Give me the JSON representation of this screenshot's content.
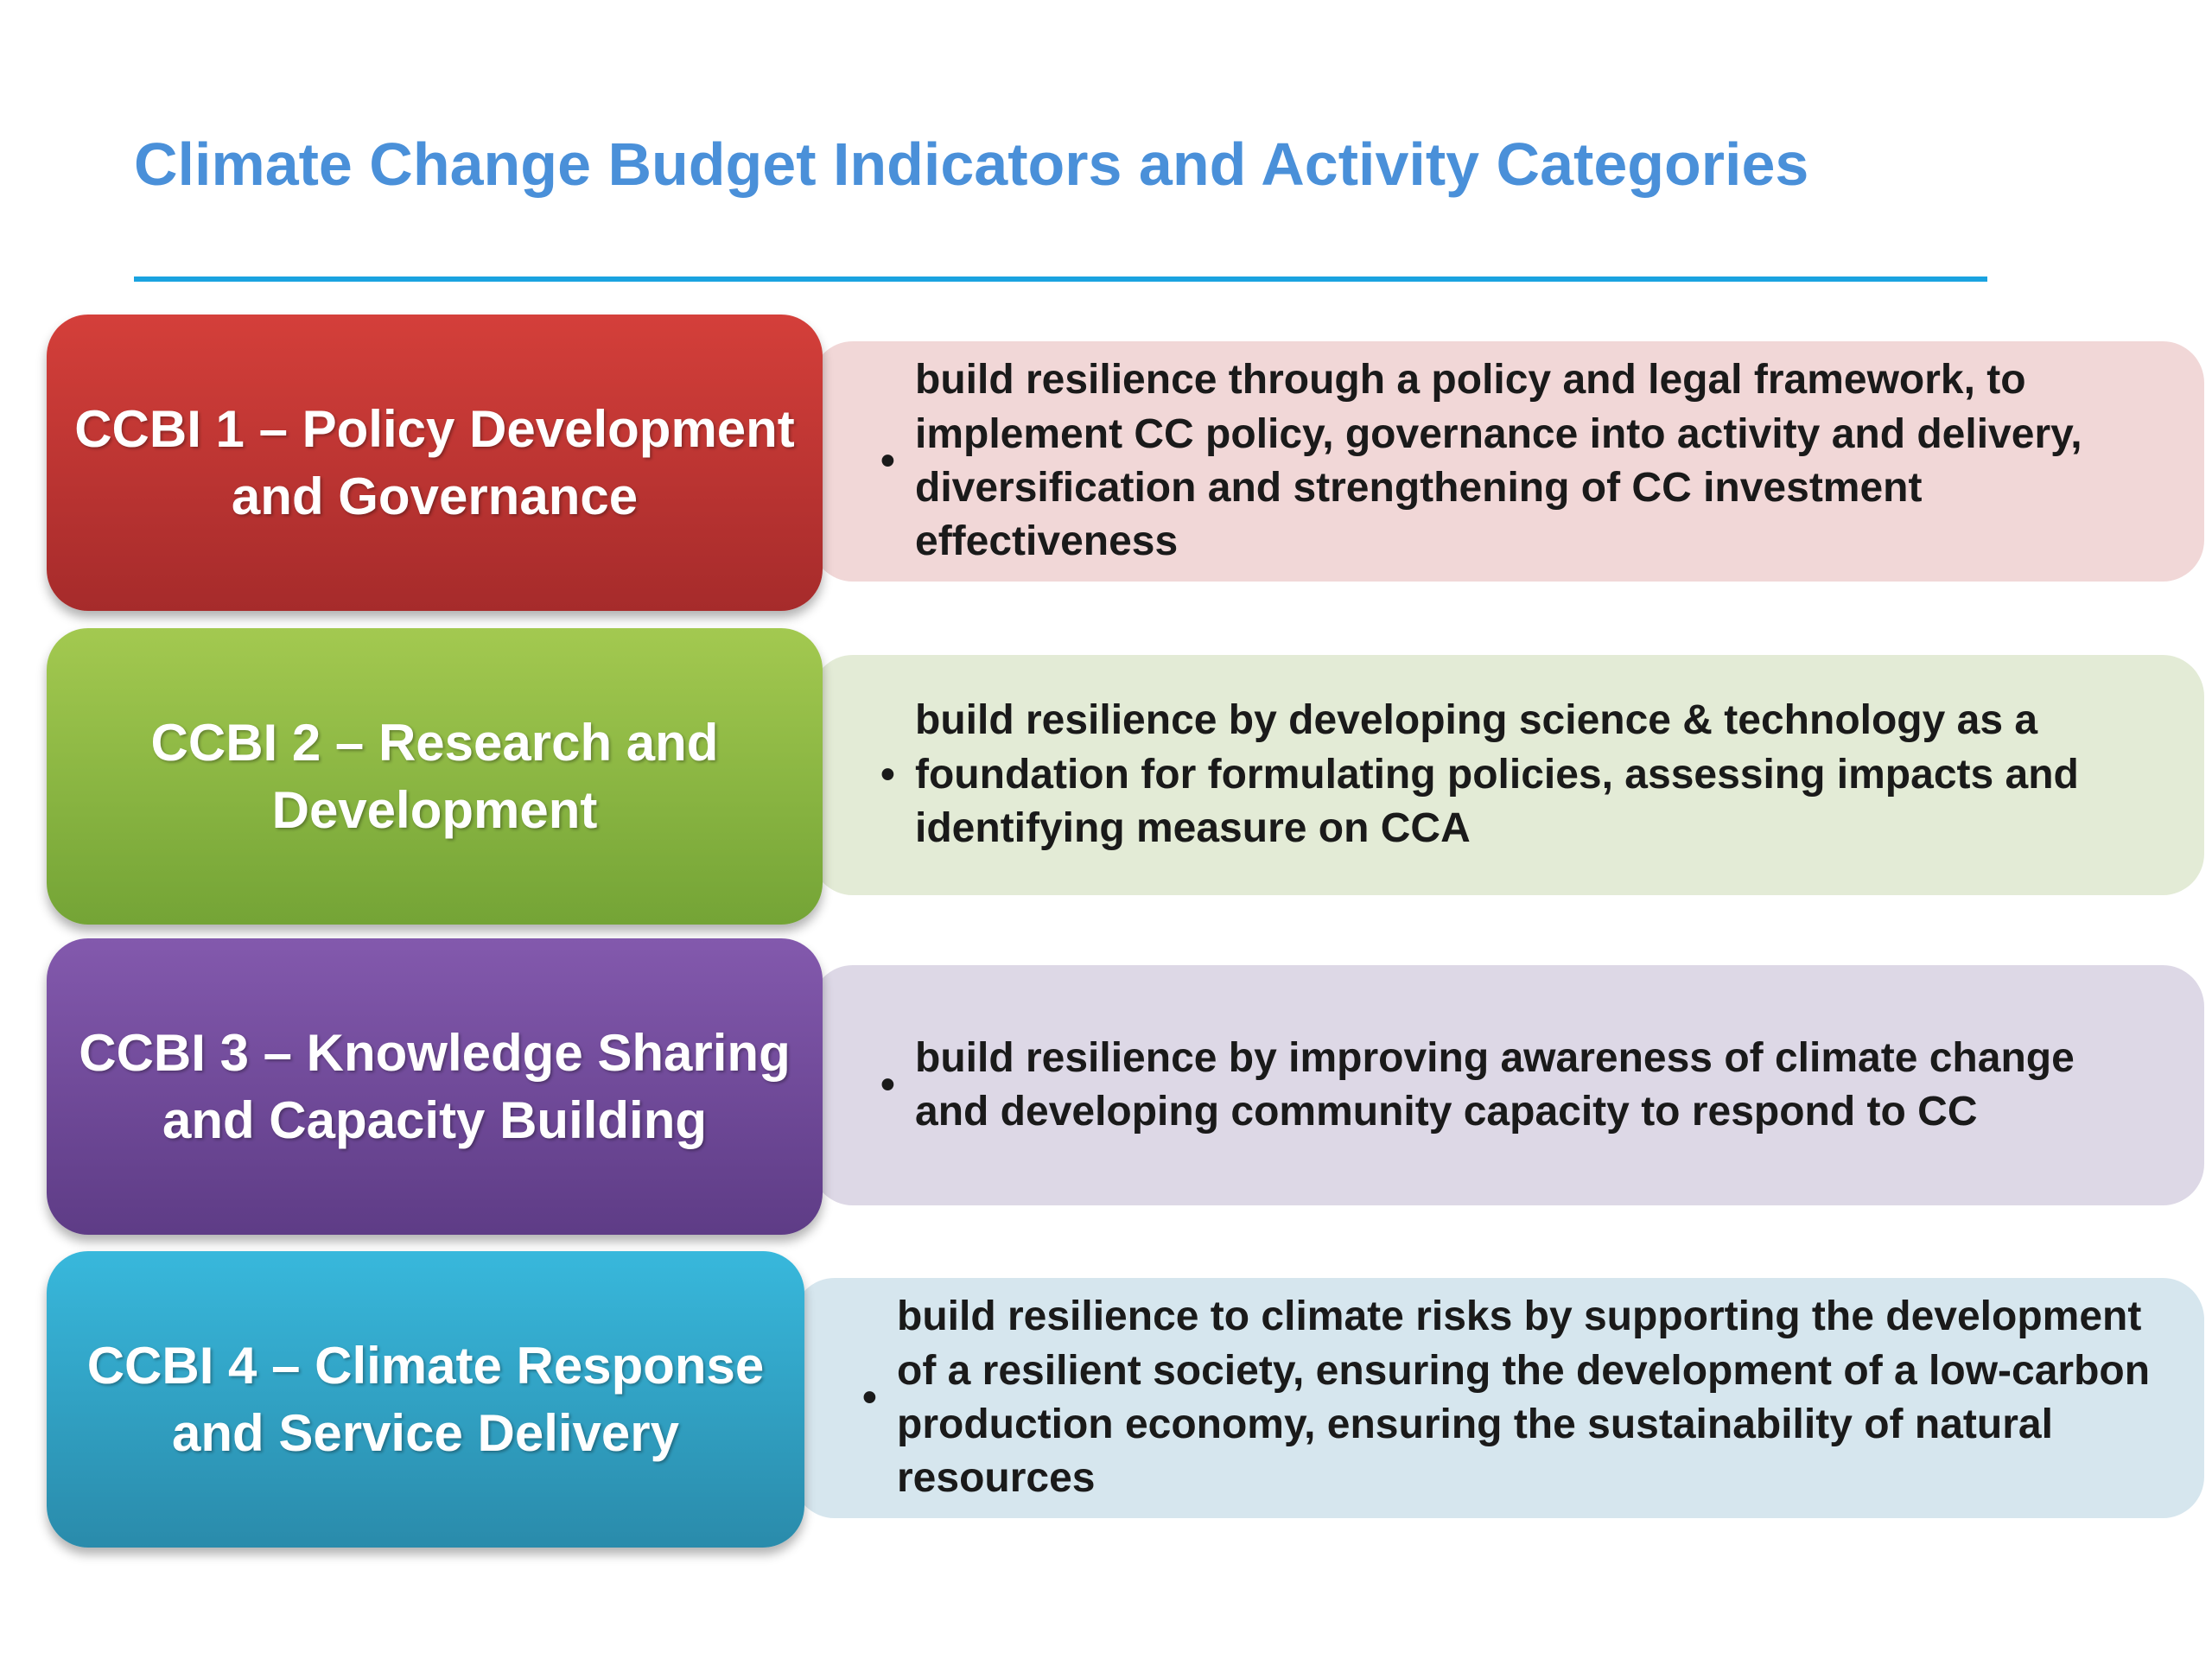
{
  "title": "Climate Change Budget Indicators and Activity Categories",
  "rows": [
    {
      "label": "CCBI 1 – Policy Development and Governance",
      "description": "build resilience through  a  policy and legal  framework, to implement CC policy, governance into activity and delivery, diversification and strengthening of  CC investment effectiveness"
    },
    {
      "label": "CCBI 2 – Research and Development",
      "description": "build resilience by developing science & technology as a foundation for formulating policies,  assessing impacts and identifying measure on CCA"
    },
    {
      "label": "CCBI 3 – Knowledge Sharing and Capacity Building",
      "description": "build resilience by improving awareness of climate change and developing community capacity to respond to CC"
    },
    {
      "label": "CCBI 4 – Climate Response and Service Delivery",
      "description": "build resilience to climate risks by supporting the development of a resilient society, ensuring the development of a low-carbon production economy, ensuring the sustainability of natural resources"
    }
  ]
}
